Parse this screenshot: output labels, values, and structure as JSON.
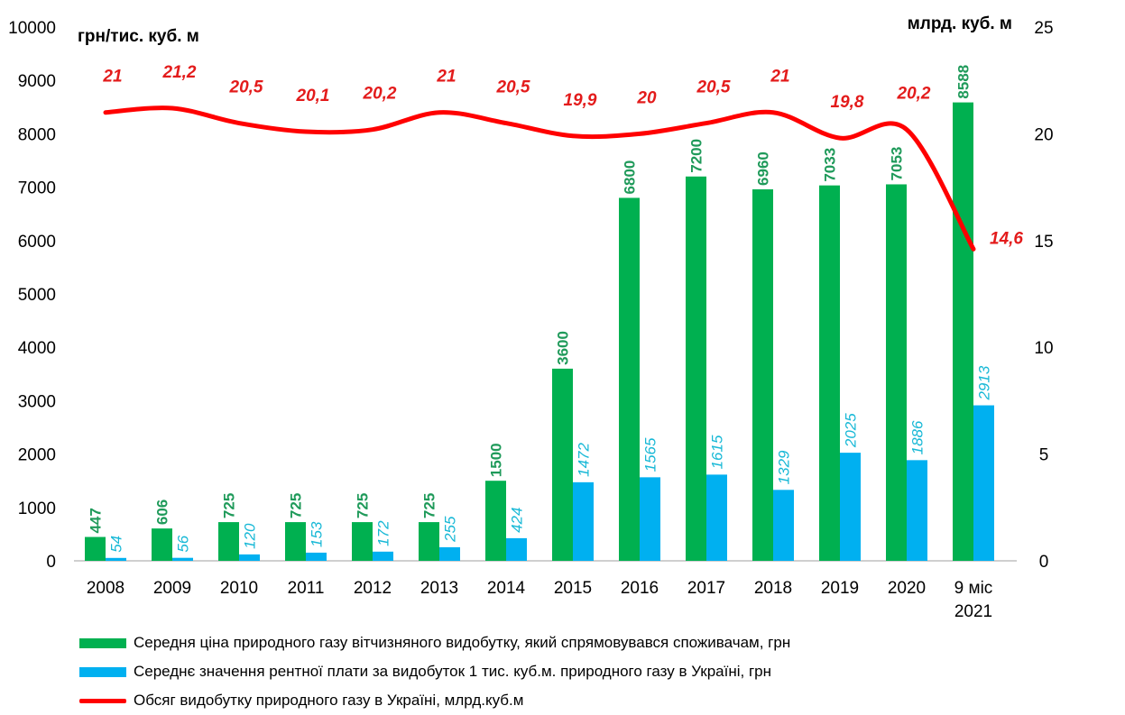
{
  "chart_data": {
    "type": "bar",
    "left_axis_unit": "грн/тис. куб. м",
    "right_axis_unit": "млрд. куб. м",
    "left_ticks": [
      "0",
      "1000",
      "2000",
      "3000",
      "4000",
      "5000",
      "6000",
      "7000",
      "8000",
      "9000",
      "10000"
    ],
    "right_ticks": [
      "0",
      "5",
      "10",
      "15",
      "20",
      "25"
    ],
    "ylim": [
      0,
      10000
    ],
    "y2lim": [
      0,
      25
    ],
    "categories": [
      "2008",
      "2009",
      "2010",
      "2011",
      "2012",
      "2013",
      "2014",
      "2015",
      "2016",
      "2017",
      "2018",
      "2019",
      "2020",
      "9 міс 2021"
    ],
    "series": [
      {
        "name": "Середня ціна природного газу вітчизняного видобутку, який спрямовувався споживачам, грн",
        "type": "bar",
        "axis": "left",
        "color": "#00b050",
        "values": [
          447,
          606,
          725,
          725,
          725,
          725,
          1500,
          3600,
          6800,
          7200,
          6960,
          7033,
          7053,
          8588
        ],
        "labels": [
          "447",
          "606",
          "725",
          "725",
          "725",
          "725",
          "1500",
          "3600",
          "6800",
          "7200",
          "6960",
          "7033",
          "7053",
          "8588"
        ]
      },
      {
        "name": "Середнє значення рентної плати за видобуток 1 тис. куб.м. природного газу в Україні, грн",
        "type": "bar",
        "axis": "left",
        "color": "#00b0f0",
        "values": [
          54,
          56,
          120,
          153,
          172,
          255,
          424,
          1472,
          1565,
          1615,
          1329,
          2025,
          1886,
          2913
        ],
        "labels": [
          "54",
          "56",
          "120",
          "153",
          "172",
          "255",
          "424",
          "1472",
          "1565",
          "1615",
          "1329",
          "2025",
          "1886",
          "2913"
        ]
      },
      {
        "name": "Обсяг видобутку природного газу в Україні, млрд.куб.м",
        "type": "line",
        "axis": "right",
        "color": "#ff0000",
        "values": [
          21,
          21.2,
          20.5,
          20.1,
          20.2,
          21,
          20.5,
          19.9,
          20,
          20.5,
          21,
          19.8,
          20.2,
          14.6
        ],
        "labels": [
          "21",
          "21,2",
          "20,5",
          "20,1",
          "20,2",
          "21",
          "20,5",
          "19,9",
          "20",
          "20,5",
          "21",
          "19,8",
          "20,2",
          "14,6"
        ]
      }
    ],
    "legend_position": "bottom",
    "grid": false
  }
}
